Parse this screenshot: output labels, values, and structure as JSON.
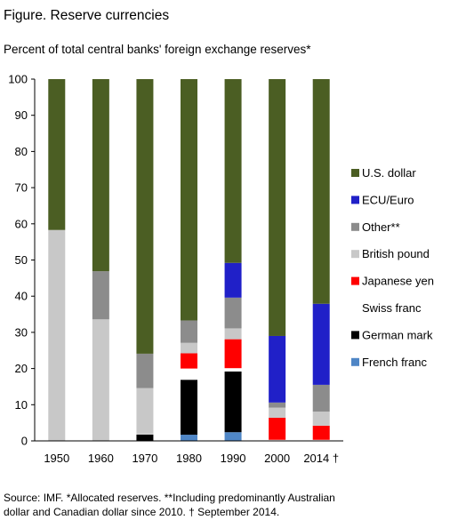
{
  "figure": {
    "title": "Figure. Reserve currencies",
    "subtitle": "Percent of total central banks' foreign exchange reserves*",
    "source_line1": "Source: IMF. *Allocated reserves. **Including predominantly Australian",
    "source_line2": "dollar and Canadian dollar since 2010. † September 2014."
  },
  "chart_data": {
    "type": "bar",
    "stacked": true,
    "categories": [
      "1950",
      "1960",
      "1970",
      "1980",
      "1990",
      "2000",
      "2014 †"
    ],
    "ylim": [
      0,
      100
    ],
    "yticks": [
      0,
      10,
      20,
      30,
      40,
      50,
      60,
      70,
      80,
      90,
      100
    ],
    "grid": false,
    "legend_position": "right",
    "series": [
      {
        "name": "French franc",
        "color": "#4f86c6",
        "values": [
          0,
          0,
          0,
          1.7,
          2.4,
          0,
          0
        ]
      },
      {
        "name": "German mark",
        "color": "#000000",
        "values": [
          0,
          0,
          1.8,
          15.2,
          16.8,
          0,
          0
        ]
      },
      {
        "name": "Swiss franc",
        "color": "#ffffff",
        "values": [
          0,
          0,
          0.2,
          3.1,
          0.9,
          0.3,
          0.3
        ]
      },
      {
        "name": "Japanese yen",
        "color": "#ff0000",
        "values": [
          0,
          0,
          0,
          4.2,
          8.0,
          6.1,
          3.9
        ]
      },
      {
        "name": "British pound",
        "color": "#c8c8c8",
        "values": [
          58.3,
          33.6,
          12.6,
          2.9,
          3.0,
          2.8,
          3.9
        ]
      },
      {
        "name": "Other**",
        "color": "#8c8c8c",
        "values": [
          0,
          13.3,
          9.5,
          6.2,
          8.5,
          1.4,
          7.4
        ]
      },
      {
        "name": "ECU/Euro",
        "color": "#2020c8",
        "values": [
          0,
          0,
          0,
          0,
          9.6,
          18.4,
          22.4
        ]
      },
      {
        "name": "U.S. dollar",
        "color": "#4b5e23",
        "values": [
          41.7,
          53.1,
          75.9,
          66.7,
          50.8,
          71.0,
          62.1
        ]
      }
    ],
    "legend_order": [
      "U.S. dollar",
      "ECU/Euro",
      "Other**",
      "British pound",
      "Japanese yen",
      "Swiss franc",
      "German mark",
      "French franc"
    ]
  }
}
